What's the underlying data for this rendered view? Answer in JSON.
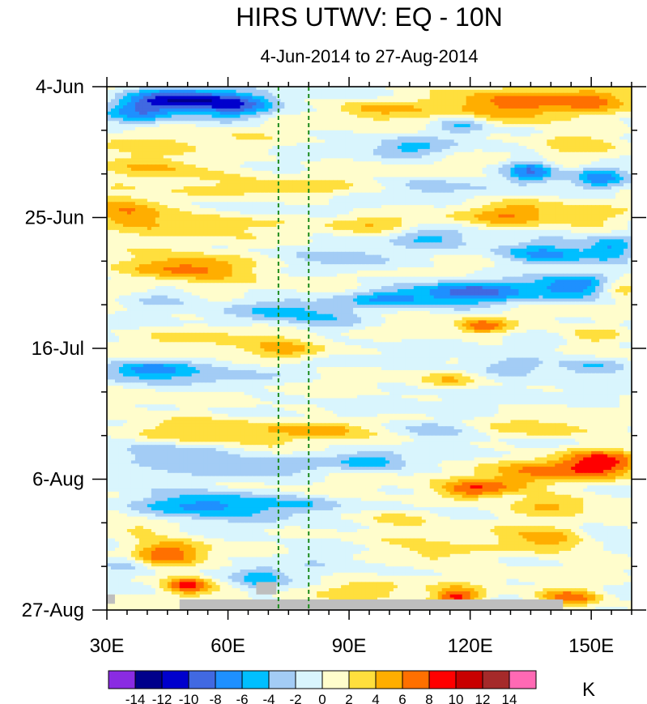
{
  "chart_data": {
    "type": "heatmap",
    "title": "HIRS UTWV: EQ - 10N",
    "subtitle": "4-Jun-2014 to 27-Aug-2014",
    "xlabel": "",
    "ylabel": "",
    "x_range": [
      30,
      160
    ],
    "y_range_days": [
      0,
      84
    ],
    "x_ticks": [
      {
        "value": 30,
        "label": "30E"
      },
      {
        "value": 60,
        "label": "60E"
      },
      {
        "value": 90,
        "label": "90E"
      },
      {
        "value": 120,
        "label": "120E"
      },
      {
        "value": 150,
        "label": "150E"
      }
    ],
    "y_ticks": [
      {
        "day": 0,
        "label": "4-Jun"
      },
      {
        "day": 21,
        "label": "25-Jun"
      },
      {
        "day": 42,
        "label": "16-Jul"
      },
      {
        "day": 63,
        "label": "6-Aug"
      },
      {
        "day": 84,
        "label": "27-Aug"
      }
    ],
    "reference_lines_lon": [
      72.5,
      80
    ],
    "colorbar": {
      "unit": "K",
      "levels": [
        -14,
        -12,
        -10,
        -8,
        -6,
        -4,
        -2,
        0,
        2,
        4,
        6,
        8,
        10,
        12,
        14
      ],
      "level_labels": [
        "-14",
        "-12",
        "-10",
        "-8",
        "-6",
        "-4",
        "-2",
        "0",
        "2",
        "4",
        "6",
        "8",
        "10",
        "12",
        "14"
      ],
      "colors": [
        "#8a2be2",
        "#00008b",
        "#0000cd",
        "#4169e1",
        "#1e90ff",
        "#00bfff",
        "#a3ccf5",
        "#d9f5fd",
        "#fffdcc",
        "#ffdf3d",
        "#ffae00",
        "#ff7000",
        "#ff0000",
        "#c80000",
        "#a52a2a",
        "#ff69b4"
      ]
    },
    "missing_color": "#bebebe",
    "missing_regions": [
      {
        "lon": [
          30,
          32
        ],
        "day": [
          81.5,
          83
        ]
      },
      {
        "lon": [
          67,
          72
        ],
        "day": [
          79.5,
          81.5
        ]
      },
      {
        "lon": [
          48,
          143
        ],
        "day": [
          82.3,
          84
        ]
      }
    ],
    "anomaly_features": [
      {
        "lon": 48,
        "day": 2,
        "slon": 12,
        "sday": 2,
        "amp": -11
      },
      {
        "lon": 62,
        "day": 3,
        "slon": 9,
        "sday": 2.2,
        "amp": -7
      },
      {
        "lon": 38,
        "day": 4,
        "slon": 8,
        "sday": 2,
        "amp": -5
      },
      {
        "lon": 95,
        "day": 3.5,
        "slon": 10,
        "sday": 1.5,
        "amp": 4
      },
      {
        "lon": 130,
        "day": 2.5,
        "slon": 22,
        "sday": 3,
        "amp": 6
      },
      {
        "lon": 150,
        "day": 2,
        "slon": 8,
        "sday": 2,
        "amp": 4
      },
      {
        "lon": 118,
        "day": 6,
        "slon": 6,
        "sday": 1.5,
        "amp": -5
      },
      {
        "lon": 145,
        "day": 8.5,
        "slon": 10,
        "sday": 2.5,
        "amp": 3
      },
      {
        "lon": 50,
        "day": 9.5,
        "slon": 25,
        "sday": 2,
        "amp": 2
      },
      {
        "lon": 105,
        "day": 10,
        "slon": 10,
        "sday": 1.5,
        "amp": -4
      },
      {
        "lon": 135,
        "day": 13.5,
        "slon": 6,
        "sday": 1.8,
        "amp": -8
      },
      {
        "lon": 152,
        "day": 14.5,
        "slon": 6,
        "sday": 1.8,
        "amp": -6
      },
      {
        "lon": 42,
        "day": 13,
        "slon": 14,
        "sday": 2,
        "amp": 5
      },
      {
        "lon": 75,
        "day": 16.5,
        "slon": 20,
        "sday": 1.5,
        "amp": 3
      },
      {
        "lon": 110,
        "day": 16,
        "slon": 8,
        "sday": 1.5,
        "amp": -3
      },
      {
        "lon": 35,
        "day": 20.5,
        "slon": 10,
        "sday": 2.5,
        "amp": 7
      },
      {
        "lon": 55,
        "day": 22,
        "slon": 14,
        "sday": 1.8,
        "amp": 4
      },
      {
        "lon": 95,
        "day": 22,
        "slon": 10,
        "sday": 1.5,
        "amp": 3
      },
      {
        "lon": 130,
        "day": 20.5,
        "slon": 12,
        "sday": 2,
        "amp": 5
      },
      {
        "lon": 150,
        "day": 21.5,
        "slon": 8,
        "sday": 2,
        "amp": 3
      },
      {
        "lon": 110,
        "day": 24,
        "slon": 10,
        "sday": 1.5,
        "amp": -4
      },
      {
        "lon": 50,
        "day": 29,
        "slon": 16,
        "sday": 2,
        "amp": 8
      },
      {
        "lon": 140,
        "day": 27,
        "slon": 12,
        "sday": 1.8,
        "amp": -7
      },
      {
        "lon": 155,
        "day": 26,
        "slon": 6,
        "sday": 2,
        "amp": -6
      },
      {
        "lon": 90,
        "day": 28,
        "slon": 10,
        "sday": 2,
        "amp": -3
      },
      {
        "lon": 120,
        "day": 33,
        "slon": 14,
        "sday": 2,
        "amp": -8
      },
      {
        "lon": 100,
        "day": 34,
        "slon": 10,
        "sday": 1.5,
        "amp": -5
      },
      {
        "lon": 145,
        "day": 32,
        "slon": 10,
        "sday": 2,
        "amp": -7
      },
      {
        "lon": 75,
        "day": 36,
        "slon": 12,
        "sday": 2,
        "amp": -4
      },
      {
        "lon": 45,
        "day": 34,
        "slon": 10,
        "sday": 1.5,
        "amp": -3
      },
      {
        "lon": 157,
        "day": 32,
        "slon": 5,
        "sday": 1.5,
        "amp": 5
      },
      {
        "lon": 123,
        "day": 38.5,
        "slon": 6,
        "sday": 1.2,
        "amp": 7
      },
      {
        "lon": 150,
        "day": 40,
        "slon": 8,
        "sday": 1.5,
        "amp": 4
      },
      {
        "lon": 55,
        "day": 40,
        "slon": 20,
        "sday": 2,
        "amp": 2
      },
      {
        "lon": 85,
        "day": 38,
        "slon": 10,
        "sday": 1.5,
        "amp": -3
      },
      {
        "lon": 75,
        "day": 42.5,
        "slon": 10,
        "sday": 1.5,
        "amp": 5
      },
      {
        "lon": 40,
        "day": 45.5,
        "slon": 10,
        "sday": 1.5,
        "amp": -7
      },
      {
        "lon": 60,
        "day": 47,
        "slon": 14,
        "sday": 1.5,
        "amp": -3
      },
      {
        "lon": 130,
        "day": 45,
        "slon": 12,
        "sday": 1.5,
        "amp": -4
      },
      {
        "lon": 150,
        "day": 45,
        "slon": 8,
        "sday": 1.5,
        "amp": -5
      },
      {
        "lon": 115,
        "day": 47,
        "slon": 6,
        "sday": 1.2,
        "amp": 3
      },
      {
        "lon": 55,
        "day": 55,
        "slon": 22,
        "sday": 2,
        "amp": 5
      },
      {
        "lon": 85,
        "day": 55,
        "slon": 10,
        "sday": 1.5,
        "amp": 4
      },
      {
        "lon": 140,
        "day": 55,
        "slon": 14,
        "sday": 1.5,
        "amp": 3
      },
      {
        "lon": 110,
        "day": 55,
        "slon": 10,
        "sday": 1.5,
        "amp": -4
      },
      {
        "lon": 45,
        "day": 59,
        "slon": 15,
        "sday": 2,
        "amp": -5
      },
      {
        "lon": 95,
        "day": 60,
        "slon": 8,
        "sday": 1.5,
        "amp": -5
      },
      {
        "lon": 70,
        "day": 61,
        "slon": 12,
        "sday": 1.5,
        "amp": -3
      },
      {
        "lon": 135,
        "day": 61.5,
        "slon": 10,
        "sday": 2,
        "amp": 5
      },
      {
        "lon": 152,
        "day": 60.5,
        "slon": 10,
        "sday": 2.5,
        "amp": 9
      },
      {
        "lon": 128,
        "day": 64,
        "slon": 10,
        "sday": 1.5,
        "amp": 4
      },
      {
        "lon": 120,
        "day": 65,
        "slon": 8,
        "sday": 1.5,
        "amp": 6
      },
      {
        "lon": 55,
        "day": 67,
        "slon": 18,
        "sday": 2,
        "amp": -8
      },
      {
        "lon": 80,
        "day": 67,
        "slon": 8,
        "sday": 1.5,
        "amp": -3
      },
      {
        "lon": 140,
        "day": 67,
        "slon": 12,
        "sday": 1.5,
        "amp": 5
      },
      {
        "lon": 100,
        "day": 69,
        "slon": 10,
        "sday": 1.5,
        "amp": 3
      },
      {
        "lon": 38,
        "day": 71,
        "slon": 8,
        "sday": 1.5,
        "amp": 4
      },
      {
        "lon": 45,
        "day": 75,
        "slon": 9,
        "sday": 2,
        "amp": 7
      },
      {
        "lon": 35,
        "day": 76.5,
        "slon": 6,
        "sday": 1.5,
        "amp": -4
      },
      {
        "lon": 140,
        "day": 73,
        "slon": 12,
        "sday": 2,
        "amp": 6
      },
      {
        "lon": 112,
        "day": 75,
        "slon": 12,
        "sday": 2,
        "amp": 4
      },
      {
        "lon": 152,
        "day": 72,
        "slon": 6,
        "sday": 1.5,
        "amp": -3
      },
      {
        "lon": 80,
        "day": 74,
        "slon": 10,
        "sday": 2,
        "amp": -2
      },
      {
        "lon": 50,
        "day": 80,
        "slon": 6,
        "sday": 1.5,
        "amp": 10
      },
      {
        "lon": 68,
        "day": 79,
        "slon": 6,
        "sday": 2,
        "amp": -5
      },
      {
        "lon": 117,
        "day": 82,
        "slon": 6,
        "sday": 1.5,
        "amp": 9
      },
      {
        "lon": 95,
        "day": 81,
        "slon": 10,
        "sday": 1.5,
        "amp": 3
      },
      {
        "lon": 145,
        "day": 82,
        "slon": 8,
        "sday": 1.5,
        "amp": 8
      }
    ]
  }
}
